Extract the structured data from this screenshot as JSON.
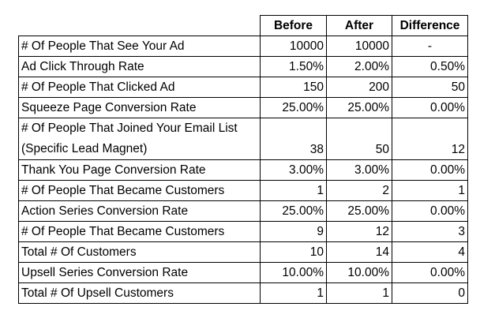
{
  "table": {
    "headers": [
      "",
      "Before",
      "After",
      "Difference"
    ],
    "rows": [
      {
        "label": [
          "# Of People That See Your Ad"
        ],
        "before": "10000",
        "after": "10000",
        "difference": "-",
        "difference_align": "center"
      },
      {
        "label": [
          "Ad Click Through Rate"
        ],
        "before": "1.50%",
        "after": "2.00%",
        "difference": "0.50%"
      },
      {
        "label": [
          "# Of People That Clicked Ad"
        ],
        "before": "150",
        "after": "200",
        "difference": "50"
      },
      {
        "label": [
          "Squeeze Page Conversion Rate"
        ],
        "before": "25.00%",
        "after": "25.00%",
        "difference": "0.00%"
      },
      {
        "label": [
          "# Of People That Joined Your Email List",
          "(Specific Lead Magnet)"
        ],
        "before": "38",
        "after": "50",
        "difference": "12",
        "tall": true
      },
      {
        "label": [
          "Thank You Page Conversion Rate"
        ],
        "before": "3.00%",
        "after": "3.00%",
        "difference": "0.00%"
      },
      {
        "label": [
          "# Of People That Became Customers"
        ],
        "before": "1",
        "after": "2",
        "difference": "1"
      },
      {
        "label": [
          "Action Series Conversion Rate"
        ],
        "before": "25.00%",
        "after": "25.00%",
        "difference": "0.00%"
      },
      {
        "label": [
          "# Of People That Became Customers"
        ],
        "before": "9",
        "after": "12",
        "difference": "3"
      },
      {
        "label": [
          "Total # Of Customers"
        ],
        "before": "10",
        "after": "14",
        "difference": "4"
      },
      {
        "label": [
          "Upsell Series Conversion Rate"
        ],
        "before": "10.00%",
        "after": "10.00%",
        "difference": "0.00%"
      },
      {
        "label": [
          "Total # Of Upsell Customers"
        ],
        "before": "1",
        "after": "1",
        "difference": "0"
      }
    ]
  }
}
